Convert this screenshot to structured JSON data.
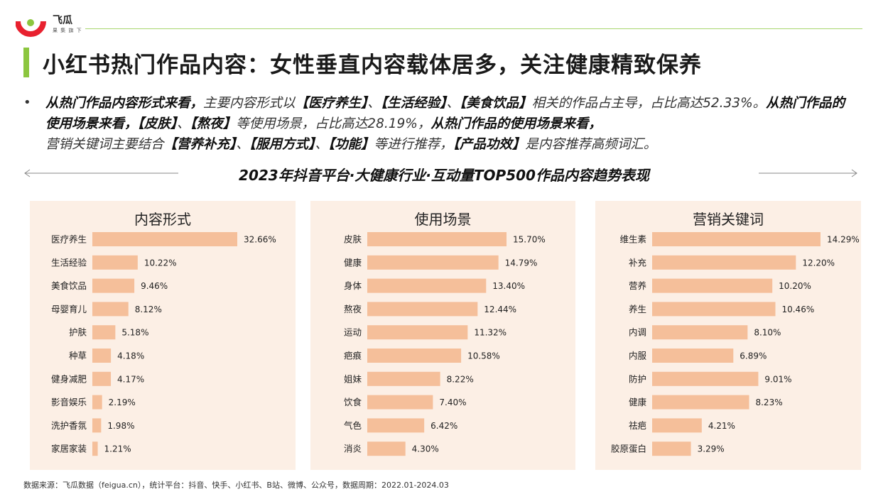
{
  "brand": {
    "name": "飞瓜",
    "tagline": "果 集 旗 下"
  },
  "title": "小红书热门作品内容：女性垂直内容载体居多，关注健康精致保养",
  "description": {
    "b1": "从热门作品内容形式来看，",
    "t1": "主要内容形式以",
    "b2": "【医疗养生】",
    "t2": "、",
    "b3": "【生活经验】",
    "t3": "、",
    "b4": "【美食饮品】",
    "t4": "相关的作品占主导，占比高达52.33%。",
    "b5": "从热门作品的使用场景来看，【皮肤】",
    "t5": "、",
    "b6": "【熬夜】",
    "t6": "等使用场景，占比高达28.19%，",
    "b7": "从热门作品的使用场景来看，",
    "t7": "营销关键词主要结合",
    "b8": "【营养补充】",
    "t8": "、",
    "b9": "【服用方式】",
    "t9": "、",
    "b10": "【功能】",
    "t10": "等进行推荐，",
    "b11": "【产品功效】",
    "t11": "是内容推荐高频词汇。"
  },
  "subtitle": "2023年抖音平台·大健康行业·互动量TOP500作品内容趋势表现",
  "colors": {
    "bar": "#f5bf9a",
    "panel_bg": "#fcefe5",
    "accent": "#8cc63f",
    "logo_red": "#e8212f"
  },
  "chart_data": [
    {
      "type": "bar",
      "orientation": "horizontal",
      "title": "内容形式",
      "categories": [
        "医疗养生",
        "生活经验",
        "美食饮品",
        "母婴育儿",
        "护肤",
        "种草",
        "健身减肥",
        "影音娱乐",
        "洗护香氛",
        "家居家装"
      ],
      "values": [
        32.66,
        10.22,
        9.46,
        8.12,
        5.18,
        4.18,
        4.17,
        2.19,
        1.98,
        1.21
      ],
      "labels": [
        "32.66%",
        "10.22%",
        "9.46%",
        "8.12%",
        "5.18%",
        "4.18%",
        "4.17%",
        "2.19%",
        "1.98%",
        "1.21%"
      ],
      "xlim": [
        0,
        32.66
      ]
    },
    {
      "type": "bar",
      "orientation": "horizontal",
      "title": "使用场景",
      "categories": [
        "皮肤",
        "健康",
        "身体",
        "熬夜",
        "运动",
        "疤痕",
        "姐妹",
        "饮食",
        "气色",
        "消炎"
      ],
      "values": [
        15.7,
        14.79,
        13.4,
        12.44,
        11.32,
        10.58,
        8.22,
        7.4,
        6.42,
        4.3
      ],
      "labels": [
        "15.70%",
        "14.79%",
        "13.40%",
        "12.44%",
        "11.32%",
        "10.58%",
        "8.22%",
        "7.40%",
        "6.42%",
        "4.30%"
      ],
      "xlim": [
        0,
        15.7
      ]
    },
    {
      "type": "bar",
      "orientation": "horizontal",
      "title": "营销关键词",
      "categories": [
        "维生素",
        "补充",
        "营养",
        "养生",
        "内调",
        "内服",
        "防护",
        "健康",
        "祛疤",
        "胶原蛋白"
      ],
      "values": [
        14.29,
        12.2,
        10.2,
        10.46,
        8.1,
        6.89,
        9.01,
        8.23,
        4.21,
        3.29
      ],
      "labels": [
        "14.29%",
        "12.20%",
        "10.20%",
        "10.46%",
        "8.10%",
        "6.89%",
        "9.01%",
        "8.23%",
        "4.21%",
        "3.29%"
      ],
      "xlim": [
        0,
        14.29
      ]
    }
  ],
  "source": "数据来源：飞瓜数据（feigua.cn），统计平台：抖音、快手、小红书、B站、微博、公众号，数据周期：2022.01-2024.03"
}
